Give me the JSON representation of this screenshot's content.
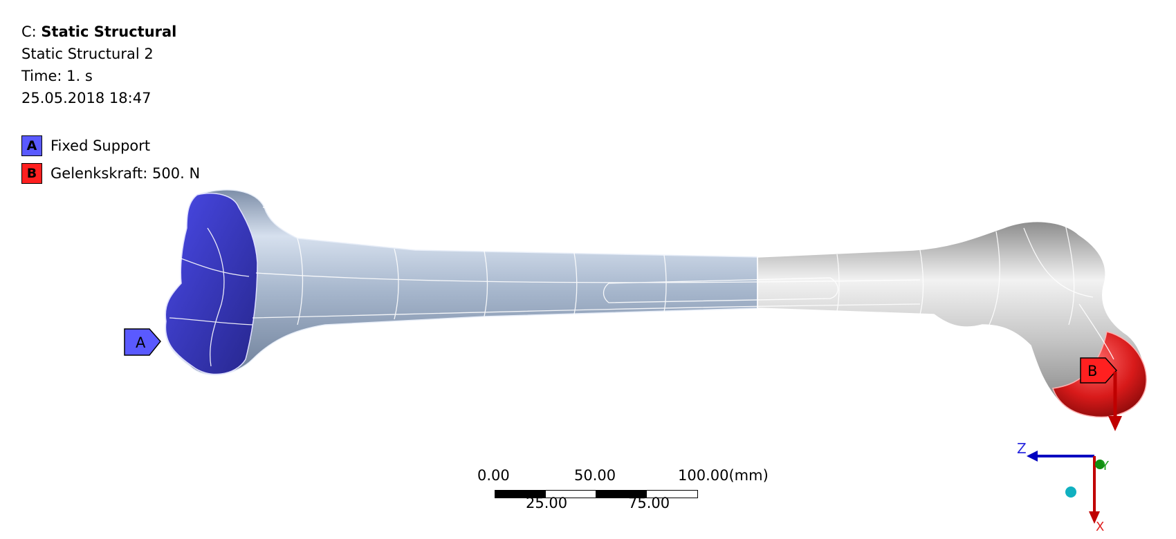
{
  "header": {
    "analysis_prefix": "C: ",
    "analysis_name": "Static Structural",
    "subtitle": "Static Structural 2",
    "time": "Time: 1. s",
    "timestamp": "25.05.2018 18:47"
  },
  "legend": {
    "items": [
      {
        "key": "A",
        "label": "Fixed Support",
        "color": "#5a5aff"
      },
      {
        "key": "B",
        "label": "Gelenkskraft: 500. N",
        "color": "#ff2020"
      }
    ]
  },
  "callouts": {
    "a_label": "A",
    "b_label": "B"
  },
  "scale": {
    "top_labels": [
      "0.00",
      "50.00",
      "100.00(mm)"
    ],
    "bottom_labels": [
      "25.00",
      "75.00"
    ]
  },
  "triad": {
    "z_label": "Z",
    "y_label": "Y",
    "x_label": "X"
  },
  "colors": {
    "fixed_support": "#3a3ad0",
    "load": "#e01818",
    "bone_blue": "#a9b9cf",
    "bone_grey": "#c8c8c8"
  }
}
